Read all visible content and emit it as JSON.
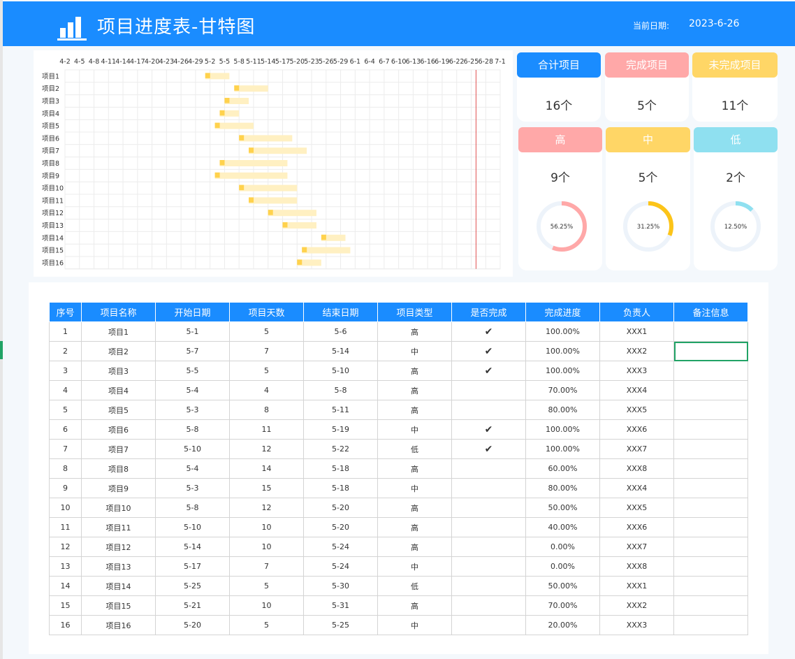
{
  "header": {
    "title": "项目进度表-甘特图",
    "date_label": "当前日期:",
    "date_value": "2023-6-26",
    "logo_icon": "bar-chart-icon"
  },
  "stats": {
    "total": {
      "label": "合计项目",
      "value": "16个",
      "color": "#1a8cff"
    },
    "done": {
      "label": "完成项目",
      "value": "5个",
      "color": "#ffa8a8"
    },
    "undone": {
      "label": "未完成项目",
      "value": "11个",
      "color": "#ffd666"
    },
    "high": {
      "label": "高",
      "value": "9个",
      "color": "#ffa8a8",
      "pct": 56.25,
      "pct_label": "56.25%"
    },
    "mid": {
      "label": "中",
      "value": "5个",
      "color": "#ffd666",
      "ring_color": "#fcc419",
      "pct": 31.25,
      "pct_label": "31.25%"
    },
    "low": {
      "label": "低",
      "value": "2个",
      "color": "#8fe0f0",
      "pct": 12.5,
      "pct_label": "12.50%"
    }
  },
  "chart_data": {
    "type": "gantt",
    "x_tick_labels": [
      "4-2",
      "4-5",
      "4-8",
      "4-11",
      "4-14",
      "4-17",
      "4-20",
      "4-23",
      "4-26",
      "4-29",
      "5-2",
      "5-5",
      "5-8",
      "5-11",
      "5-14",
      "5-17",
      "5-20",
      "5-23",
      "5-26",
      "5-29",
      "6-1",
      "6-4",
      "6-7",
      "6-10",
      "6-13",
      "6-16",
      "6-19",
      "6-22",
      "6-25",
      "6-28",
      "7-1"
    ],
    "today": "6-26",
    "tasks": [
      {
        "name": "项目1",
        "start": "5-1",
        "days": 5,
        "progress": 1.0
      },
      {
        "name": "项目2",
        "start": "5-7",
        "days": 7,
        "progress": 1.0
      },
      {
        "name": "项目3",
        "start": "5-5",
        "days": 5,
        "progress": 1.0
      },
      {
        "name": "项目4",
        "start": "5-4",
        "days": 4,
        "progress": 0.7
      },
      {
        "name": "项目5",
        "start": "5-3",
        "days": 8,
        "progress": 0.8
      },
      {
        "name": "项目6",
        "start": "5-8",
        "days": 11,
        "progress": 1.0
      },
      {
        "name": "项目7",
        "start": "5-10",
        "days": 12,
        "progress": 1.0
      },
      {
        "name": "项目8",
        "start": "5-4",
        "days": 14,
        "progress": 0.6
      },
      {
        "name": "项目9",
        "start": "5-3",
        "days": 15,
        "progress": 0.8
      },
      {
        "name": "项目10",
        "start": "5-8",
        "days": 12,
        "progress": 0.5
      },
      {
        "name": "项目11",
        "start": "5-10",
        "days": 10,
        "progress": 0.4
      },
      {
        "name": "项目12",
        "start": "5-14",
        "days": 10,
        "progress": 0.0
      },
      {
        "name": "项目13",
        "start": "5-17",
        "days": 7,
        "progress": 0.0
      },
      {
        "name": "项目14",
        "start": "5-25",
        "days": 5,
        "progress": 0.5
      },
      {
        "name": "项目15",
        "start": "5-21",
        "days": 10,
        "progress": 0.7
      },
      {
        "name": "项目16",
        "start": "5-20",
        "days": 5,
        "progress": 0.2
      }
    ],
    "colors": {
      "bar": "#fff0c2",
      "marker": "#ffd24d",
      "today_line": "#e05050",
      "grid": "#ececec"
    }
  },
  "table": {
    "headers": [
      "序号",
      "项目名称",
      "开始日期",
      "项目天数",
      "结束日期",
      "项目类型",
      "是否完成",
      "完成进度",
      "负责人",
      "备注信息"
    ],
    "rows": [
      [
        "1",
        "项目1",
        "5-1",
        "5",
        "5-6",
        "高",
        "✔",
        "100.00%",
        "XXX1",
        ""
      ],
      [
        "2",
        "项目2",
        "5-7",
        "7",
        "5-14",
        "中",
        "✔",
        "100.00%",
        "XXX2",
        ""
      ],
      [
        "3",
        "项目3",
        "5-5",
        "5",
        "5-10",
        "高",
        "✔",
        "100.00%",
        "XXX3",
        ""
      ],
      [
        "4",
        "项目4",
        "5-4",
        "4",
        "5-8",
        "高",
        "",
        "70.00%",
        "XXX4",
        ""
      ],
      [
        "5",
        "项目5",
        "5-3",
        "8",
        "5-11",
        "高",
        "",
        "80.00%",
        "XXX5",
        ""
      ],
      [
        "6",
        "项目6",
        "5-8",
        "11",
        "5-19",
        "中",
        "✔",
        "100.00%",
        "XXX6",
        ""
      ],
      [
        "7",
        "项目7",
        "5-10",
        "12",
        "5-22",
        "低",
        "✔",
        "100.00%",
        "XXX7",
        ""
      ],
      [
        "8",
        "项目8",
        "5-4",
        "14",
        "5-18",
        "高",
        "",
        "60.00%",
        "XXX8",
        ""
      ],
      [
        "9",
        "项目9",
        "5-3",
        "15",
        "5-18",
        "中",
        "",
        "80.00%",
        "XXX4",
        ""
      ],
      [
        "10",
        "项目10",
        "5-8",
        "12",
        "5-20",
        "高",
        "",
        "50.00%",
        "XXX5",
        ""
      ],
      [
        "11",
        "项目11",
        "5-10",
        "10",
        "5-20",
        "高",
        "",
        "40.00%",
        "XXX6",
        ""
      ],
      [
        "12",
        "项目12",
        "5-14",
        "10",
        "5-24",
        "高",
        "",
        "0.00%",
        "XXX7",
        ""
      ],
      [
        "13",
        "项目13",
        "5-17",
        "7",
        "5-24",
        "中",
        "",
        "0.00%",
        "XXX8",
        ""
      ],
      [
        "14",
        "项目14",
        "5-25",
        "5",
        "5-30",
        "低",
        "",
        "50.00%",
        "XXX1",
        ""
      ],
      [
        "15",
        "项目15",
        "5-21",
        "10",
        "5-31",
        "高",
        "",
        "70.00%",
        "XXX2",
        ""
      ],
      [
        "16",
        "项目16",
        "5-20",
        "5",
        "5-25",
        "中",
        "",
        "20.00%",
        "XXX3",
        ""
      ]
    ]
  }
}
